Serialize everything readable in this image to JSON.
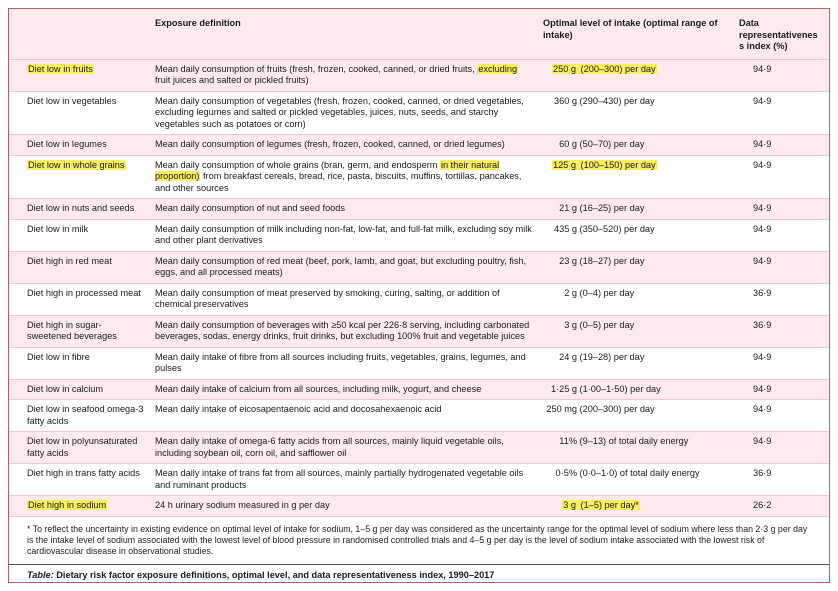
{
  "colors": {
    "row_pink": "#fdeaef",
    "highlight_yellow": "#f8ee5e",
    "frame_border": "#bb5d72",
    "row_rule": "#eec6d0",
    "caption_rule": "#555555"
  },
  "table": {
    "headers": {
      "risk": "",
      "definition": "Exposure definition",
      "intake": "Optimal level of intake (optimal range of intake)",
      "dri": "Data representativeness index (%)"
    },
    "rows": [
      {
        "risk": "Diet low in fruits",
        "risk_hl": true,
        "definition": [
          {
            "text": "Mean daily consumption of fruits (fresh, frozen, cooked, canned, or dried fruits, ",
            "hl": false
          },
          {
            "text": "excluding",
            "hl": true
          },
          {
            "text": " fruit juices and salted or pickled fruits)",
            "hl": false
          }
        ],
        "intake_num": "250 g",
        "intake_rest": "(200–300) per day",
        "intake_hl": true,
        "dri": "94·9"
      },
      {
        "risk": "Diet low in vegetables",
        "risk_hl": false,
        "definition": [
          {
            "text": "Mean daily consumption of vegetables (fresh, frozen, cooked, canned, or dried vegetables, excluding legumes and salted or pickled vegetables, juices, nuts, seeds, and starchy vegetables such as potatoes or corn)",
            "hl": false
          }
        ],
        "intake_num": "360 g",
        "intake_rest": "(290–430) per day",
        "intake_hl": false,
        "dri": "94·9"
      },
      {
        "risk": "Diet low in legumes",
        "risk_hl": false,
        "definition": [
          {
            "text": "Mean daily consumption of legumes (fresh, frozen, cooked, canned, or dried legumes)",
            "hl": false
          }
        ],
        "intake_num": "60 g",
        "intake_rest": "(50–70) per day",
        "intake_hl": false,
        "dri": "94·9"
      },
      {
        "risk": "Diet low in whole grains",
        "risk_hl": true,
        "definition": [
          {
            "text": "Mean daily consumption of whole grains (bran, germ, and endosperm ",
            "hl": false
          },
          {
            "text": "in their natural proportion)",
            "hl": true
          },
          {
            "text": " from breakfast cereals, bread, rice, pasta, biscuits, muffins, tortillas, pancakes, and other sources",
            "hl": false
          }
        ],
        "intake_num": "125 g",
        "intake_rest": "(100–150) per day",
        "intake_hl": true,
        "dri": "94·9"
      },
      {
        "risk": "Diet low in nuts and seeds",
        "risk_hl": false,
        "definition": [
          {
            "text": "Mean daily consumption of nut and seed foods",
            "hl": false
          }
        ],
        "intake_num": "21 g",
        "intake_rest": "(16–25) per day",
        "intake_hl": false,
        "dri": "94·9"
      },
      {
        "risk": "Diet low in milk",
        "risk_hl": false,
        "definition": [
          {
            "text": "Mean daily consumption of milk including non-fat, low-fat, and full-fat milk, excluding soy milk and other plant derivatives",
            "hl": false
          }
        ],
        "intake_num": "435 g",
        "intake_rest": "(350–520) per day",
        "intake_hl": false,
        "dri": "94·9"
      },
      {
        "risk": "Diet high in red meat",
        "risk_hl": false,
        "definition": [
          {
            "text": "Mean daily consumption of red meat (beef, pork, lamb, and goat, but excluding poultry, fish, eggs, and all processed meats)",
            "hl": false
          }
        ],
        "intake_num": "23 g",
        "intake_rest": "(18–27) per day",
        "intake_hl": false,
        "dri": "94·9"
      },
      {
        "risk": "Diet high in processed meat",
        "risk_hl": false,
        "definition": [
          {
            "text": "Mean daily consumption of meat preserved by smoking, curing, salting, or addition of chemical preservatives",
            "hl": false
          }
        ],
        "intake_num": "2 g",
        "intake_rest": "(0–4) per day",
        "intake_hl": false,
        "dri": "36·9"
      },
      {
        "risk": "Diet high in sugar-sweetened beverages",
        "risk_hl": false,
        "definition": [
          {
            "text": "Mean daily consumption of beverages with ≥50 kcal per 226·8 serving, including carbonated beverages, sodas, energy drinks, fruit drinks, but excluding 100% fruit and vegetable juices",
            "hl": false
          }
        ],
        "intake_num": "3 g",
        "intake_rest": "(0–5) per day",
        "intake_hl": false,
        "dri": "36·9"
      },
      {
        "risk": "Diet low in fibre",
        "risk_hl": false,
        "definition": [
          {
            "text": "Mean daily intake of fibre from all sources including fruits, vegetables, grains, legumes, and pulses",
            "hl": false
          }
        ],
        "intake_num": "24 g",
        "intake_rest": "(19–28) per day",
        "intake_hl": false,
        "dri": "94·9"
      },
      {
        "risk": "Diet low in calcium",
        "risk_hl": false,
        "definition": [
          {
            "text": "Mean daily intake of calcium from all sources, including milk, yogurt, and cheese",
            "hl": false
          }
        ],
        "intake_num": "1·25 g",
        "intake_rest": "(1·00–1·50) per day",
        "intake_hl": false,
        "dri": "94·9"
      },
      {
        "risk": "Diet low in seafood omega-3 fatty acids",
        "risk_hl": false,
        "definition": [
          {
            "text": "Mean daily intake of eicosapentaenoic acid and docosahexaenoic acid",
            "hl": false
          }
        ],
        "intake_num": "250 mg",
        "intake_rest": "(200–300) per day",
        "intake_hl": false,
        "dri": "94·9"
      },
      {
        "risk": "Diet low in polyunsaturated fatty acids",
        "risk_hl": false,
        "definition": [
          {
            "text": "Mean daily intake of omega-6 fatty acids from all sources, mainly liquid vegetable oils, including soybean oil, corn oil, and safflower oil",
            "hl": false
          }
        ],
        "intake_num": "11%",
        "intake_rest": "(9–13) of total daily energy",
        "intake_hl": false,
        "dri": "94·9"
      },
      {
        "risk": "Diet high in trans fatty acids",
        "risk_hl": false,
        "definition": [
          {
            "text": "Mean daily intake of trans fat from all sources, mainly partially hydrogenated vegetable oils and ruminant products",
            "hl": false
          }
        ],
        "intake_num": "0·5%",
        "intake_rest": "(0·0–1·0) of total daily energy",
        "intake_hl": false,
        "dri": "36·9"
      },
      {
        "risk": "Diet high in sodium",
        "risk_hl": true,
        "definition": [
          {
            "text": "24 h urinary sodium measured in g per day",
            "hl": false
          }
        ],
        "intake_num": "3 g",
        "intake_rest": "(1–5) per day*",
        "intake_hl": true,
        "dri": "26·2"
      }
    ]
  },
  "footnote": "* To reflect the uncertainty in existing evidence on optimal level of intake for sodium, 1–5 g per day was considered as the uncertainty range for the optimal level of sodium where less than 2·3 g per day is the intake level of sodium associated with the lowest level of blood pressure in randomised controlled trials and 4–5 g per day is the level of sodium intake associated with the lowest risk of cardiovascular disease in observational studies.",
  "caption": {
    "label": "Table:",
    "text": "Dietary risk factor exposure definitions, optimal level, and data representativeness index, 1990–2017"
  }
}
